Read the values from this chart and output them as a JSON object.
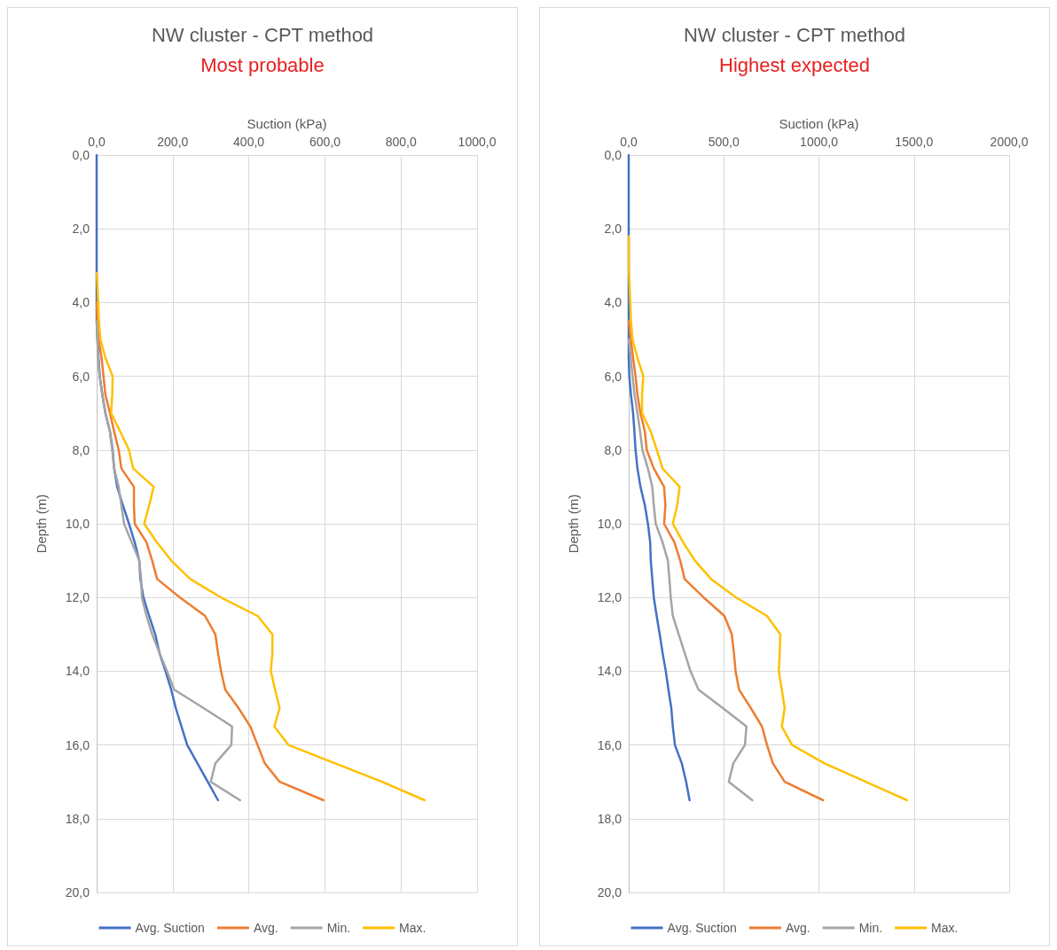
{
  "chart_data": [
    {
      "type": "line",
      "title": "NW cluster - CPT method",
      "subtitle": "Most probable",
      "xlabel": "Suction (kPa)",
      "ylabel": "Depth (m)",
      "legend": "bottom",
      "grid": true,
      "xlim": [
        0,
        1000
      ],
      "xticks": [
        {
          "value": 0,
          "label": "0,0"
        },
        {
          "value": 200,
          "label": "200,0"
        },
        {
          "value": 400,
          "label": "400,0"
        },
        {
          "value": 600,
          "label": "600,0"
        },
        {
          "value": 800,
          "label": "800,0"
        },
        {
          "value": 1000,
          "label": "1000,0"
        }
      ],
      "ylim": [
        20,
        0
      ],
      "yticks": [
        {
          "value": 0,
          "label": "0,0"
        },
        {
          "value": 2,
          "label": "2,0"
        },
        {
          "value": 4,
          "label": "4,0"
        },
        {
          "value": 6,
          "label": "6,0"
        },
        {
          "value": 8,
          "label": "8,0"
        },
        {
          "value": 10,
          "label": "10,0"
        },
        {
          "value": 12,
          "label": "12,0"
        },
        {
          "value": 14,
          "label": "14,0"
        },
        {
          "value": 16,
          "label": "16,0"
        },
        {
          "value": 18,
          "label": "18,0"
        },
        {
          "value": 20,
          "label": "20,0"
        }
      ],
      "series": [
        {
          "name": "Avg. Suction",
          "color": "#4472c4",
          "x": [
            0,
            0,
            0,
            2,
            5,
            8,
            15,
            23,
            35,
            42,
            46,
            54,
            69,
            85,
            100,
            112,
            115,
            123,
            138,
            154,
            165,
            181,
            196,
            208,
            223,
            238,
            265,
            292,
            319
          ],
          "values": [
            0,
            3,
            4.5,
            5,
            5.5,
            6,
            6.5,
            7,
            7.5,
            8,
            8.5,
            9,
            9.5,
            10,
            10.5,
            11,
            11.5,
            12,
            12.5,
            13,
            13.5,
            14,
            14.5,
            15,
            15.5,
            16,
            16.5,
            17,
            17.5
          ]
        },
        {
          "name": "Avg.",
          "color": "#ed7d31",
          "x": [
            0,
            2,
            5,
            13,
            18,
            23,
            35,
            46,
            58,
            65,
            98,
            98,
            100,
            131,
            146,
            159,
            219,
            285,
            312,
            319,
            327,
            338,
            373,
            404,
            423,
            442,
            481,
            596
          ],
          "values": [
            4,
            4.5,
            5,
            5.5,
            6,
            6.5,
            7,
            7.5,
            8,
            8.5,
            9,
            9.5,
            10,
            10.5,
            11,
            11.5,
            12,
            12.5,
            13,
            13.5,
            14,
            14.5,
            15,
            15.5,
            16,
            16.5,
            17,
            17.5
          ]
        },
        {
          "name": "Min.",
          "color": "#a5a5a5",
          "x": [
            0,
            2,
            4,
            8,
            15,
            23,
            35,
            41,
            46,
            58,
            65,
            72,
            92,
            112,
            117,
            119,
            131,
            146,
            165,
            185,
            204,
            281,
            356,
            354,
            312,
            300,
            377
          ],
          "values": [
            4.5,
            5,
            5.5,
            6,
            6.5,
            7,
            7.5,
            8,
            8.5,
            9,
            9.5,
            10,
            10.5,
            11,
            11.5,
            12,
            12.5,
            13,
            13.5,
            14,
            14.5,
            15,
            15.5,
            16,
            16.5,
            17,
            17.5
          ]
        },
        {
          "name": "Max.",
          "color": "#ffc000",
          "x": [
            0,
            2,
            4,
            6,
            10,
            23,
            42,
            41,
            38,
            62,
            85,
            96,
            150,
            138,
            125,
            158,
            196,
            246,
            327,
            423,
            462,
            462,
            458,
            469,
            481,
            467,
            504,
            627,
            750,
            862
          ],
          "values": [
            3.2,
            3.5,
            4,
            4.5,
            5,
            5.5,
            6,
            6.5,
            7,
            7.5,
            8,
            8.5,
            9,
            9.5,
            10,
            10.5,
            11,
            11.5,
            12,
            12.5,
            13,
            13.5,
            14,
            14.5,
            15,
            15.5,
            16,
            16.5,
            17,
            17.5
          ]
        }
      ]
    },
    {
      "type": "line",
      "title": "NW cluster - CPT method",
      "subtitle": "Highest expected",
      "xlabel": "Suction (kPa)",
      "ylabel": "Depth (m)",
      "legend": "bottom",
      "grid": true,
      "xlim": [
        0,
        2000
      ],
      "xticks": [
        {
          "value": 0,
          "label": "0,0"
        },
        {
          "value": 500,
          "label": "500,0"
        },
        {
          "value": 1000,
          "label": "1000,0"
        },
        {
          "value": 1500,
          "label": "1500,0"
        },
        {
          "value": 2000,
          "label": "2000,0"
        }
      ],
      "ylim": [
        20,
        0
      ],
      "yticks": [
        {
          "value": 0,
          "label": "0,0"
        },
        {
          "value": 2,
          "label": "2,0"
        },
        {
          "value": 4,
          "label": "4,0"
        },
        {
          "value": 6,
          "label": "6,0"
        },
        {
          "value": 8,
          "label": "8,0"
        },
        {
          "value": 10,
          "label": "10,0"
        },
        {
          "value": 12,
          "label": "12,0"
        },
        {
          "value": 14,
          "label": "14,0"
        },
        {
          "value": 16,
          "label": "16,0"
        },
        {
          "value": 18,
          "label": "18,0"
        },
        {
          "value": 20,
          "label": "20,0"
        }
      ],
      "series": [
        {
          "name": "Avg. Suction",
          "color": "#4472c4",
          "x": [
            0,
            0,
            3,
            12,
            23,
            30,
            36,
            46,
            62,
            85,
            101,
            113,
            116,
            124,
            132,
            147,
            163,
            178,
            195,
            209,
            224,
            232,
            243,
            279,
            302,
            320
          ],
          "values": [
            0,
            5.5,
            6,
            6.5,
            7,
            7.5,
            8,
            8.5,
            9,
            9.5,
            10,
            10.5,
            11,
            11.5,
            12,
            12.5,
            13,
            13.5,
            14,
            14.5,
            15,
            15.5,
            16,
            16.5,
            17,
            17.5
          ]
        },
        {
          "name": "Avg.",
          "color": "#ed7d31",
          "x": [
            0,
            11,
            23,
            36,
            46,
            62,
            85,
            95,
            132,
            186,
            193,
            186,
            240,
            271,
            294,
            394,
            503,
            542,
            553,
            562,
            580,
            642,
            701,
            727,
            758,
            820,
            1022
          ],
          "values": [
            4.5,
            5,
            5.5,
            6,
            6.5,
            7,
            7.5,
            8,
            8.5,
            9,
            9.5,
            10,
            10.5,
            11,
            11.5,
            12,
            12.5,
            13,
            13.5,
            14,
            14.5,
            15,
            15.5,
            16,
            16.5,
            17,
            17.5
          ]
        },
        {
          "name": "Min.",
          "color": "#a5a5a5",
          "x": [
            0,
            11,
            20,
            31,
            46,
            60,
            72,
            101,
            124,
            132,
            142,
            178,
            206,
            214,
            221,
            232,
            263,
            294,
            325,
            367,
            495,
            619,
            611,
            550,
            526,
            650
          ],
          "values": [
            5,
            5.5,
            6,
            6.5,
            7,
            7.5,
            8,
            8.5,
            9,
            9.5,
            10,
            10.5,
            11,
            11.5,
            12,
            12.5,
            13,
            13.5,
            14,
            14.5,
            15,
            15.5,
            16,
            16.5,
            17,
            17.5
          ]
        },
        {
          "name": "Max.",
          "color": "#ffc000",
          "x": [
            0,
            0,
            8,
            12,
            20,
            46,
            77,
            70,
            70,
            116,
            148,
            178,
            268,
            255,
            232,
            286,
            348,
            433,
            565,
            727,
            797,
            794,
            789,
            805,
            820,
            805,
            859,
            1029,
            1246,
            1463
          ],
          "values": [
            2.2,
            3,
            4,
            4.5,
            5,
            5.5,
            6,
            6.5,
            7,
            7.5,
            8,
            8.5,
            9,
            9.5,
            10,
            10.5,
            11,
            11.5,
            12,
            12.5,
            13,
            13.5,
            14,
            14.5,
            15,
            15.5,
            16,
            16.5,
            17,
            17.5
          ]
        }
      ]
    }
  ]
}
